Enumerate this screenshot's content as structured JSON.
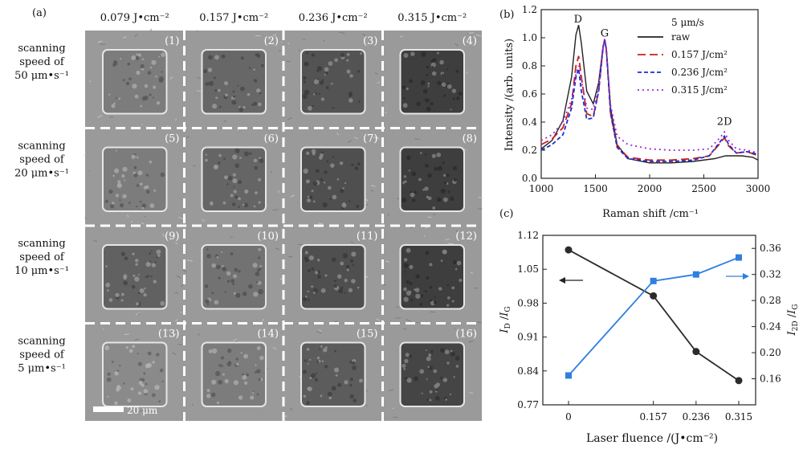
{
  "panel_a": {
    "label": "(a)",
    "fluences": [
      "0.079 J•cm⁻²",
      "0.157 J•cm⁻²",
      "0.236 J•cm⁻²",
      "0.315 J•cm⁻²"
    ],
    "rows": [
      {
        "lines": [
          "scanning",
          "speed of",
          "50 μm•s⁻¹"
        ],
        "intensity": [
          0.55,
          0.7,
          0.85,
          1.0
        ]
      },
      {
        "lines": [
          "scanning",
          "speed of",
          "20 μm•s⁻¹"
        ],
        "intensity": [
          0.55,
          0.72,
          0.88,
          1.0
        ]
      },
      {
        "lines": [
          "scanning",
          "speed of",
          "10 μm•s⁻¹"
        ],
        "intensity": [
          0.75,
          0.62,
          0.88,
          1.0
        ]
      },
      {
        "lines": [
          "scanning",
          "speed of",
          "5 μm•s⁻¹"
        ],
        "intensity": [
          0.45,
          0.55,
          0.78,
          0.95
        ]
      }
    ],
    "cell_labels": [
      "(1)",
      "(2)",
      "(3)",
      "(4)",
      "(5)",
      "(6)",
      "(7)",
      "(8)",
      "(9)",
      "(10)",
      "(11)",
      "(12)",
      "(13)",
      "(14)",
      "(15)",
      "(16)"
    ],
    "scale_bar": "20 μm",
    "colors": {
      "background": "#9a9a9a",
      "divider": "#ffffff",
      "square_light": "#c8c8c8",
      "square_dark": "#3e3e3e"
    }
  },
  "chart_data": [
    {
      "id": "b",
      "type": "line",
      "panel_label": "(b)",
      "xlabel": "Raman shift /cm⁻¹",
      "ylabel": "Intensity /(arb. units)",
      "xlim": [
        1000,
        3000
      ],
      "ylim": [
        0.0,
        1.2
      ],
      "xticks": [
        1000,
        1500,
        2000,
        2500,
        3000
      ],
      "yticks": [
        0.0,
        0.2,
        0.4,
        0.6,
        0.8,
        1.0,
        1.2
      ],
      "legend_title": "5 μm/s",
      "legend_position": "top-right",
      "annotations": [
        {
          "text": "D",
          "x": 1340,
          "y": 1.11
        },
        {
          "text": "G",
          "x": 1585,
          "y": 1.01
        },
        {
          "text": "2D",
          "x": 2690,
          "y": 0.38
        }
      ],
      "series": [
        {
          "name": "raw",
          "color": "#222222",
          "dash": "solid",
          "points": [
            [
              1000,
              0.21
            ],
            [
              1100,
              0.27
            ],
            [
              1200,
              0.41
            ],
            [
              1280,
              0.72
            ],
            [
              1320,
              1.02
            ],
            [
              1345,
              1.09
            ],
            [
              1370,
              0.96
            ],
            [
              1420,
              0.62
            ],
            [
              1480,
              0.53
            ],
            [
              1530,
              0.68
            ],
            [
              1570,
              0.94
            ],
            [
              1585,
              0.98
            ],
            [
              1600,
              0.92
            ],
            [
              1640,
              0.5
            ],
            [
              1700,
              0.24
            ],
            [
              1800,
              0.14
            ],
            [
              2000,
              0.11
            ],
            [
              2200,
              0.11
            ],
            [
              2400,
              0.12
            ],
            [
              2600,
              0.14
            ],
            [
              2700,
              0.16
            ],
            [
              2850,
              0.16
            ],
            [
              2950,
              0.15
            ],
            [
              3000,
              0.13
            ]
          ]
        },
        {
          "name": "0.157 J/cm²",
          "color": "#cc1f1f",
          "dash": "10,5",
          "points": [
            [
              1000,
              0.24
            ],
            [
              1100,
              0.28
            ],
            [
              1200,
              0.36
            ],
            [
              1280,
              0.53
            ],
            [
              1320,
              0.8
            ],
            [
              1345,
              0.87
            ],
            [
              1370,
              0.72
            ],
            [
              1420,
              0.46
            ],
            [
              1480,
              0.44
            ],
            [
              1530,
              0.62
            ],
            [
              1570,
              0.93
            ],
            [
              1585,
              0.99
            ],
            [
              1600,
              0.92
            ],
            [
              1640,
              0.46
            ],
            [
              1700,
              0.23
            ],
            [
              1800,
              0.15
            ],
            [
              2000,
              0.13
            ],
            [
              2200,
              0.13
            ],
            [
              2400,
              0.14
            ],
            [
              2550,
              0.16
            ],
            [
              2650,
              0.25
            ],
            [
              2690,
              0.29
            ],
            [
              2730,
              0.23
            ],
            [
              2800,
              0.18
            ],
            [
              2900,
              0.19
            ],
            [
              3000,
              0.16
            ]
          ]
        },
        {
          "name": "0.236 J/cm²",
          "color": "#1a2fcf",
          "dash": "5,3",
          "points": [
            [
              1000,
              0.2
            ],
            [
              1100,
              0.24
            ],
            [
              1200,
              0.31
            ],
            [
              1280,
              0.5
            ],
            [
              1320,
              0.72
            ],
            [
              1345,
              0.78
            ],
            [
              1370,
              0.62
            ],
            [
              1420,
              0.42
            ],
            [
              1480,
              0.43
            ],
            [
              1530,
              0.62
            ],
            [
              1570,
              0.93
            ],
            [
              1585,
              0.99
            ],
            [
              1600,
              0.92
            ],
            [
              1640,
              0.46
            ],
            [
              1700,
              0.22
            ],
            [
              1800,
              0.14
            ],
            [
              2000,
              0.12
            ],
            [
              2200,
              0.12
            ],
            [
              2400,
              0.13
            ],
            [
              2550,
              0.16
            ],
            [
              2650,
              0.26
            ],
            [
              2690,
              0.3
            ],
            [
              2730,
              0.24
            ],
            [
              2800,
              0.18
            ],
            [
              2900,
              0.19
            ],
            [
              3000,
              0.17
            ]
          ]
        },
        {
          "name": "0.315 J/cm²",
          "color": "#9b2bd6",
          "dash": "2,4",
          "points": [
            [
              1000,
              0.27
            ],
            [
              1100,
              0.31
            ],
            [
              1200,
              0.4
            ],
            [
              1280,
              0.56
            ],
            [
              1320,
              0.74
            ],
            [
              1345,
              0.8
            ],
            [
              1370,
              0.7
            ],
            [
              1420,
              0.5
            ],
            [
              1480,
              0.49
            ],
            [
              1530,
              0.64
            ],
            [
              1570,
              0.93
            ],
            [
              1585,
              0.99
            ],
            [
              1600,
              0.93
            ],
            [
              1640,
              0.52
            ],
            [
              1700,
              0.3
            ],
            [
              1800,
              0.24
            ],
            [
              2000,
              0.21
            ],
            [
              2200,
              0.2
            ],
            [
              2400,
              0.2
            ],
            [
              2550,
              0.21
            ],
            [
              2650,
              0.29
            ],
            [
              2690,
              0.33
            ],
            [
              2730,
              0.27
            ],
            [
              2800,
              0.21
            ],
            [
              2900,
              0.2
            ],
            [
              3000,
              0.18
            ]
          ]
        }
      ]
    },
    {
      "id": "c",
      "type": "line",
      "panel_label": "(c)",
      "xlabel": "Laser fluence /(J•cm⁻²)",
      "ylabel_left": "I_D / I_G",
      "ylabel_right": "I_2D / I_G",
      "categories": [
        "0",
        "0.157",
        "0.236",
        "0.315"
      ],
      "yleft_lim": [
        0.77,
        1.12
      ],
      "yleft_ticks": [
        0.77,
        0.84,
        0.91,
        0.98,
        1.05,
        1.12
      ],
      "yright_lim": [
        0.12,
        0.38
      ],
      "yright_ticks": [
        0.16,
        0.2,
        0.24,
        0.28,
        0.32,
        0.36
      ],
      "series": [
        {
          "axis": "left",
          "color": "#2b2b2b",
          "marker": "circle",
          "points": [
            [
              0,
              1.09
            ],
            [
              0.157,
              0.995
            ],
            [
              0.236,
              0.88
            ],
            [
              0.315,
              0.82
            ]
          ]
        },
        {
          "axis": "right",
          "color": "#2f7fe0",
          "marker": "square",
          "points": [
            [
              0,
              0.165
            ],
            [
              0.157,
              0.31
            ],
            [
              0.236,
              0.32
            ],
            [
              0.315,
              0.346
            ]
          ]
        }
      ]
    }
  ]
}
